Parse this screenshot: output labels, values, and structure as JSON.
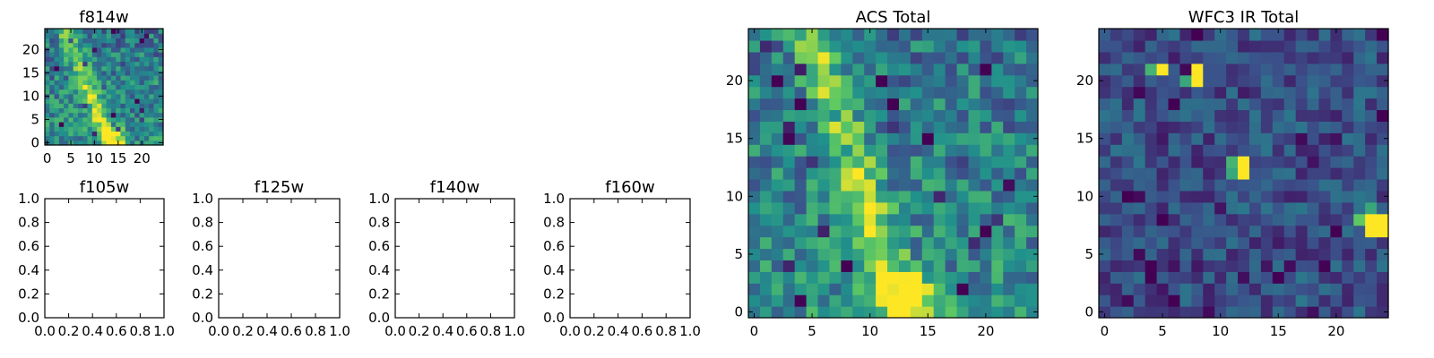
{
  "figure": {
    "background": "#ffffff"
  },
  "colormap": [
    "#440154",
    "#3b528b",
    "#21918c",
    "#5ec962",
    "#fde725"
  ],
  "chart_data": [
    {
      "id": "f814w",
      "type": "heatmap",
      "title": "f814w",
      "grid": false,
      "nx": 25,
      "ny": 25,
      "xlim": [
        -0.5,
        24.5
      ],
      "ylim": [
        -0.5,
        24.5
      ],
      "xticks": [
        0,
        5,
        10,
        15,
        20
      ],
      "xtick_labels": [
        "0",
        "5",
        "10",
        "15",
        "20"
      ],
      "yticks": [
        0,
        5,
        10,
        15,
        20
      ],
      "ytick_labels": [
        "0",
        "5",
        "10",
        "15",
        "20"
      ],
      "pattern": {
        "ridge": [
          4,
          24,
          13,
          0
        ],
        "hot_start": 4.5,
        "hot_end": 14.5,
        "hot_rows": 4,
        "seed": 11
      }
    },
    {
      "id": "f105w",
      "type": "empty",
      "title": "f105w",
      "xlim": [
        0,
        1
      ],
      "ylim": [
        0,
        1
      ],
      "xtick_labels": [
        "0.0",
        "0.2",
        "0.4",
        "0.6",
        "0.8",
        "1.0"
      ],
      "ytick_labels": [
        "0.0",
        "0.2",
        "0.4",
        "0.6",
        "0.8",
        "1.0"
      ]
    },
    {
      "id": "f125w",
      "type": "empty",
      "title": "f125w",
      "xlim": [
        0,
        1
      ],
      "ylim": [
        0,
        1
      ],
      "xtick_labels": [
        "0.0",
        "0.2",
        "0.4",
        "0.6",
        "0.8",
        "1.0"
      ],
      "ytick_labels": [
        "0.0",
        "0.2",
        "0.4",
        "0.6",
        "0.8",
        "1.0"
      ]
    },
    {
      "id": "f140w",
      "type": "empty",
      "title": "f140w",
      "xlim": [
        0,
        1
      ],
      "ylim": [
        0,
        1
      ],
      "xtick_labels": [
        "0.0",
        "0.2",
        "0.4",
        "0.6",
        "0.8",
        "1.0"
      ],
      "ytick_labels": [
        "0.0",
        "0.2",
        "0.4",
        "0.6",
        "0.8",
        "1.0"
      ]
    },
    {
      "id": "f160w",
      "type": "empty",
      "title": "f160w",
      "xlim": [
        0,
        1
      ],
      "ylim": [
        0,
        1
      ],
      "xtick_labels": [
        "0.0",
        "0.2",
        "0.4",
        "0.6",
        "0.8",
        "1.0"
      ],
      "ytick_labels": [
        "0.0",
        "0.2",
        "0.4",
        "0.6",
        "0.8",
        "1.0"
      ]
    },
    {
      "id": "acs-total",
      "type": "heatmap",
      "title": "ACS Total",
      "grid": false,
      "nx": 25,
      "ny": 25,
      "xlim": [
        -0.5,
        24.5
      ],
      "ylim": [
        -0.5,
        24.5
      ],
      "xticks": [
        0,
        5,
        10,
        15,
        20
      ],
      "xtick_labels": [
        "0",
        "5",
        "10",
        "15",
        "20"
      ],
      "yticks": [
        0,
        5,
        10,
        15,
        20
      ],
      "ytick_labels": [
        "0",
        "5",
        "10",
        "15",
        "20"
      ],
      "pattern": {
        "ridge": [
          5,
          24,
          12.5,
          0
        ],
        "hot_start": 4.5,
        "hot_end": 14.5,
        "hot_rows": 4,
        "seed": 7
      }
    },
    {
      "id": "wfc3-ir-total",
      "type": "heatmap",
      "title": "WFC3 IR Total",
      "grid": false,
      "nx": 25,
      "ny": 25,
      "xlim": [
        -0.5,
        24.5
      ],
      "ylim": [
        -0.5,
        24.5
      ],
      "xticks": [
        0,
        5,
        10,
        15,
        20
      ],
      "xtick_labels": [
        "0",
        "5",
        "10",
        "15",
        "20"
      ],
      "yticks": [
        0,
        5,
        10,
        15,
        20
      ],
      "ytick_labels": [
        "0",
        "5",
        "10",
        "15",
        "20"
      ],
      "pattern": {
        "base": 0.25,
        "seed": 23,
        "hotspots": [
          {
            "x": 4,
            "y": 21,
            "v": 0.65
          },
          {
            "x": 5,
            "y": 21,
            "v": 1.0
          },
          {
            "x": 7,
            "y": 20,
            "v": 0.6
          },
          {
            "x": 8,
            "y": 21,
            "v": 1.0
          },
          {
            "x": 8,
            "y": 20,
            "v": 1.0
          },
          {
            "x": 11,
            "y": 13,
            "v": 0.65
          },
          {
            "x": 11,
            "y": 12,
            "v": 0.6
          },
          {
            "x": 12,
            "y": 13,
            "v": 1.0
          },
          {
            "x": 12,
            "y": 12,
            "v": 1.0
          },
          {
            "x": 22,
            "y": 8,
            "v": 0.75
          },
          {
            "x": 23,
            "y": 8,
            "v": 1.0
          },
          {
            "x": 24,
            "y": 8,
            "v": 1.0
          },
          {
            "x": 23,
            "y": 7,
            "v": 1.0
          },
          {
            "x": 24,
            "y": 7,
            "v": 1.0
          },
          {
            "x": 23,
            "y": 9,
            "v": 0.6
          }
        ]
      }
    }
  ]
}
